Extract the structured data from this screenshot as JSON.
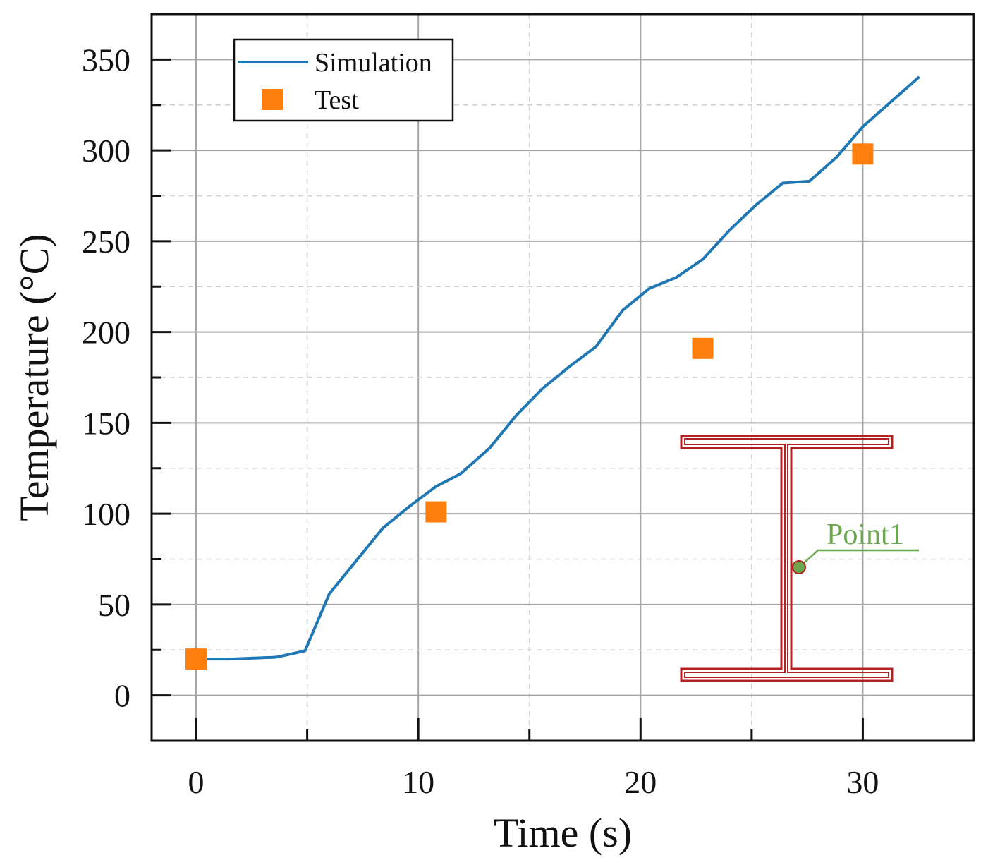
{
  "chart_data": {
    "type": "line",
    "title": "",
    "xlabel": "Time (s)",
    "ylabel": "Temperature (°C)",
    "xlim": [
      -2,
      35
    ],
    "ylim": [
      -25,
      375
    ],
    "x_ticks": [
      0,
      10,
      20,
      30
    ],
    "y_ticks": [
      0,
      50,
      100,
      150,
      200,
      250,
      300,
      350
    ],
    "grid": true,
    "legend_position": "top-left",
    "series": [
      {
        "name": "Simulation",
        "kind": "line",
        "color": "#1f77b4",
        "x": [
          0,
          1.5,
          3.6,
          4.9,
          6.0,
          7.2,
          8.4,
          9.6,
          10.8,
          11.9,
          13.2,
          14.4,
          15.6,
          16.8,
          18.0,
          19.2,
          20.4,
          21.6,
          22.8,
          24.0,
          25.2,
          26.4,
          27.6,
          28.8,
          30.0,
          31.2,
          32.5
        ],
        "y": [
          20,
          20,
          21,
          24.5,
          56,
          74,
          92,
          104,
          115,
          122,
          136,
          154,
          169,
          181,
          192,
          212,
          224,
          230,
          240,
          256,
          270,
          282,
          283,
          296,
          313,
          326,
          340
        ]
      },
      {
        "name": "Test",
        "kind": "scatter",
        "color": "#ff7f0e",
        "x": [
          0,
          10.8,
          22.8,
          30.0
        ],
        "y": [
          20,
          101,
          191,
          298
        ]
      }
    ],
    "annotations": [
      {
        "text": "Point1",
        "color": "#6aa84f"
      }
    ],
    "inset_color": "#b22222"
  }
}
